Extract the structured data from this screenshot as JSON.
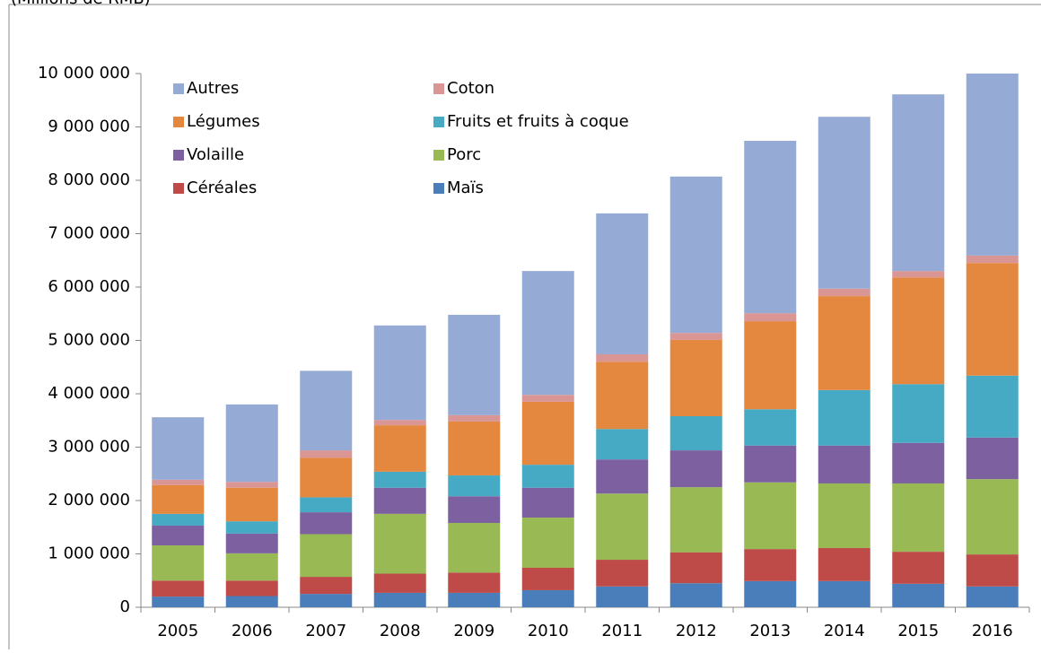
{
  "chart_data": {
    "type": "stacked_bar",
    "subtitle": "(Millions de RMB)",
    "categories": [
      "2005",
      "2006",
      "2007",
      "2008",
      "2009",
      "2010",
      "2011",
      "2012",
      "2013",
      "2014",
      "2015",
      "2016"
    ],
    "series": [
      {
        "name": "Maïs",
        "color": "#4a7ebb",
        "values": [
          200000,
          210000,
          250000,
          270000,
          270000,
          320000,
          390000,
          450000,
          490000,
          490000,
          440000,
          390000
        ]
      },
      {
        "name": "Céréales",
        "color": "#be4b48",
        "values": [
          300000,
          290000,
          320000,
          360000,
          380000,
          420000,
          500000,
          580000,
          600000,
          620000,
          600000,
          600000
        ]
      },
      {
        "name": "Porc",
        "color": "#98b954",
        "values": [
          660000,
          510000,
          800000,
          1120000,
          930000,
          940000,
          1240000,
          1220000,
          1250000,
          1210000,
          1280000,
          1410000
        ]
      },
      {
        "name": "Volaille",
        "color": "#7d60a0",
        "values": [
          370000,
          370000,
          410000,
          490000,
          500000,
          560000,
          640000,
          690000,
          690000,
          710000,
          760000,
          780000
        ]
      },
      {
        "name": "Fruits et fruits à coque",
        "color": "#46aac5",
        "values": [
          220000,
          230000,
          280000,
          300000,
          390000,
          430000,
          570000,
          640000,
          680000,
          1040000,
          1100000,
          1160000
        ]
      },
      {
        "name": "Légumes",
        "color": "#e3883e",
        "values": [
          540000,
          630000,
          740000,
          870000,
          1010000,
          1180000,
          1260000,
          1430000,
          1650000,
          1760000,
          2000000,
          2110000
        ]
      },
      {
        "name": "Coton",
        "color": "#d99694",
        "values": [
          100000,
          110000,
          140000,
          100000,
          120000,
          130000,
          140000,
          130000,
          150000,
          140000,
          120000,
          140000
        ]
      },
      {
        "name": "Autres",
        "color": "#95aad4",
        "values": [
          1170000,
          1450000,
          1490000,
          1770000,
          1880000,
          2320000,
          2640000,
          2930000,
          3230000,
          3220000,
          3310000,
          3410000
        ]
      }
    ],
    "ylim": [
      0,
      10000000
    ],
    "yticks": [
      0,
      {
        "value": 1000000,
        "label": "1 000 000"
      },
      {
        "value": 2000000,
        "label": "2 000 000"
      },
      {
        "value": 3000000,
        "label": "3 000 000"
      },
      {
        "value": 4000000,
        "label": "4 000 000"
      },
      {
        "value": 5000000,
        "label": "5 000 000"
      },
      {
        "value": 6000000,
        "label": "6 000 000"
      },
      {
        "value": 7000000,
        "label": "7 000 000"
      },
      {
        "value": 8000000,
        "label": "8 000 000"
      },
      {
        "value": 9000000,
        "label": "9 000 000"
      },
      {
        "value": 10000000,
        "label": "10 000 000"
      }
    ],
    "grid": false
  }
}
